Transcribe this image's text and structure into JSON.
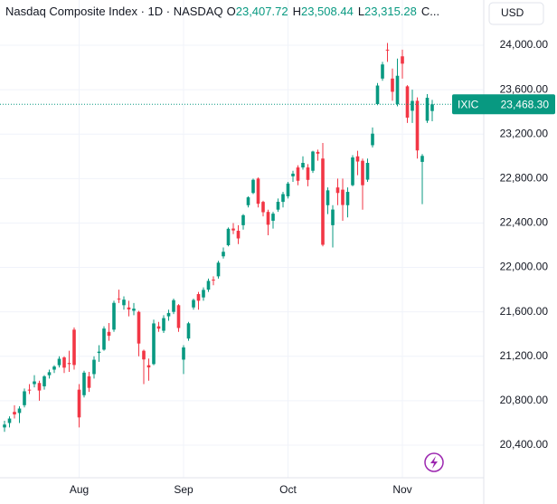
{
  "header": {
    "title": "Nasdaq Composite Index · 1D · NASDAQ",
    "ohlc": [
      {
        "key": "O",
        "value": "23,407.72"
      },
      {
        "key": "H",
        "value": "23,508.44"
      },
      {
        "key": "L",
        "value": "23,315.28"
      }
    ],
    "more": "C..."
  },
  "chart_data": {
    "type": "candlestick",
    "currency": "USD",
    "categories": [
      null,
      null,
      null,
      null,
      null,
      null,
      null,
      null,
      null,
      null,
      null,
      null,
      null,
      null,
      null,
      "Aug",
      null,
      null,
      null,
      null,
      null,
      null,
      null,
      null,
      null,
      null,
      null,
      null,
      null,
      null,
      null,
      null,
      null,
      null,
      null,
      null,
      "Sep",
      null,
      null,
      null,
      null,
      null,
      null,
      null,
      null,
      null,
      null,
      null,
      null,
      null,
      null,
      null,
      null,
      null,
      null,
      null,
      null,
      "Oct",
      null,
      null,
      null,
      null,
      null,
      null,
      null,
      null,
      null,
      null,
      null,
      null,
      null,
      null,
      null,
      null,
      null,
      null,
      null,
      null,
      null,
      null,
      "Nov",
      null,
      null,
      null,
      null,
      null,
      null
    ],
    "open": [
      20560,
      20600,
      20700,
      20690,
      20760,
      20900,
      20950,
      20960,
      20930,
      21030,
      21080,
      21120,
      21190,
      21140,
      21440,
      20900,
      20850,
      21020,
      21040,
      21230,
      21260,
      21420,
      21440,
      21720,
      21660,
      21640,
      21610,
      21600,
      21250,
      21120,
      21130,
      21470,
      21430,
      21560,
      21600,
      21660,
      21170,
      21360,
      21640,
      21760,
      21730,
      21800,
      21890,
      21920,
      22100,
      22200,
      22350,
      22330,
      22380,
      22560,
      22670,
      22800,
      22590,
      22500,
      22420,
      22520,
      22590,
      22640,
      22820,
      22900,
      22900,
      22900,
      22870,
      23040,
      22980,
      22560,
      22380,
      22720,
      22700,
      22560,
      22740,
      23000,
      22960,
      22790,
      23100,
      23470,
      23700,
      23960,
      23700,
      23470,
      23900,
      23630,
      23410,
      23500,
      22950,
      23320,
      23407.72
    ],
    "high": [
      20620,
      20660,
      20760,
      20750,
      20910,
      20950,
      21030,
      20980,
      21030,
      21080,
      21120,
      21200,
      21200,
      21250,
      21460,
      20950,
      21070,
      21060,
      21200,
      21300,
      21470,
      21500,
      21700,
      21800,
      21740,
      21700,
      21680,
      21610,
      21260,
      21180,
      21530,
      21510,
      21570,
      21620,
      21720,
      21670,
      21300,
      21510,
      21720,
      21780,
      21820,
      21900,
      21920,
      22060,
      22180,
      22360,
      22400,
      22380,
      22480,
      22640,
      22800,
      22810,
      22600,
      22520,
      22500,
      22620,
      22680,
      22770,
      22870,
      22920,
      23000,
      22930,
      23050,
      23060,
      23120,
      22720,
      22560,
      22800,
      22800,
      22720,
      23010,
      23050,
      22980,
      22980,
      23260,
      23660,
      23850,
      24020,
      23790,
      23880,
      23960,
      23640,
      23600,
      23530,
      23020,
      23560,
      23508.44
    ],
    "low": [
      20520,
      20560,
      20640,
      20600,
      20740,
      20860,
      20920,
      20800,
      20900,
      21000,
      21050,
      21100,
      21050,
      21060,
      21080,
      20560,
      20830,
      20880,
      21000,
      21150,
      21250,
      21340,
      21420,
      21680,
      21620,
      21560,
      21570,
      21200,
      20950,
      20980,
      21120,
      21420,
      21410,
      21520,
      21580,
      21420,
      21040,
      21340,
      21620,
      21620,
      21700,
      21780,
      21840,
      21900,
      22080,
      22190,
      22300,
      22210,
      22340,
      22540,
      22660,
      22540,
      22460,
      22290,
      22350,
      22500,
      22540,
      22620,
      22770,
      22740,
      22880,
      22730,
      22850,
      22960,
      22190,
      22480,
      22180,
      22560,
      22420,
      22450,
      22730,
      22830,
      22520,
      22770,
      23080,
      23460,
      23680,
      23850,
      23500,
      23450,
      23700,
      23300,
      23300,
      22980,
      22570,
      23300,
      23315.28
    ],
    "close": [
      20586,
      20640,
      20677,
      20730,
      20885,
      20896,
      20974,
      20892,
      21020,
      21057,
      21108,
      21178,
      21098,
      21130,
      21122,
      20650,
      21053,
      20916,
      21169,
      21242,
      21450,
      21385,
      21681,
      21713,
      21710,
      21622,
      21629,
      21315,
      21172,
      21100,
      21496,
      21449,
      21544,
      21590,
      21705,
      21455,
      21280,
      21497,
      21707,
      21700,
      21798,
      21879,
      21886,
      22043,
      22141,
      22348,
      22333,
      22261,
      22470,
      22631,
      22789,
      22573,
      22497,
      22384,
      22484,
      22591,
      22660,
      22755,
      22844,
      22780,
      22941,
      22788,
      23043,
      23024,
      22204,
      22694,
      22521,
      22670,
      22562,
      22680,
      22990,
      22953,
      22740,
      22941,
      23204,
      23637,
      23827,
      23958,
      23581,
      23725,
      23834,
      23348,
      23499,
      23053,
      23004,
      23527,
      23468.3
    ],
    "up_color": "#089981",
    "down_color": "#f23645",
    "grid": true,
    "ylim": [
      20107,
      24407
    ],
    "yticks": [
      {
        "value": 20400,
        "label": "20,400.00"
      },
      {
        "value": 20800,
        "label": "20,800.00"
      },
      {
        "value": 21200,
        "label": "21,200.00"
      },
      {
        "value": 21600,
        "label": "21,600.00"
      },
      {
        "value": 22000,
        "label": "22,000.00"
      },
      {
        "value": 22400,
        "label": "22,400.00"
      },
      {
        "value": 22800,
        "label": "22,800.00"
      },
      {
        "value": 23200,
        "label": "23,200.00"
      },
      {
        "value": 23600,
        "label": "23,600.00"
      },
      {
        "value": 24000,
        "label": "24,000.00"
      }
    ],
    "last_price": {
      "name": "IXIC",
      "label": "23,468.30"
    }
  }
}
